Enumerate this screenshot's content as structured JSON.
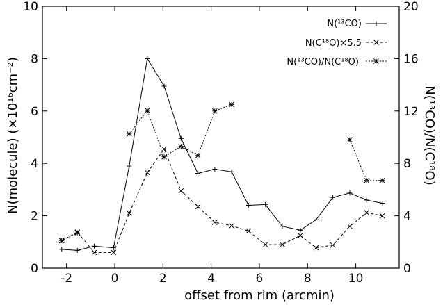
{
  "chart_data": {
    "type": "line",
    "xlabel": "offset from rim (arcmin)",
    "ylabel_left": "N(molecule) (×10¹⁶cm⁻²)",
    "ylabel_right": "N(¹³CO)/N(C¹⁸O)",
    "xlim": [
      -3.0,
      11.8
    ],
    "ylim_left": [
      0,
      10
    ],
    "ylim_right": [
      0,
      20
    ],
    "x_ticks": [
      "-2",
      "0",
      "2",
      "4",
      "6",
      "8",
      "10"
    ],
    "y_ticks_left": [
      "0",
      "2",
      "4",
      "6",
      "8",
      "10"
    ],
    "y_ticks_right": [
      "0",
      "4",
      "8",
      "12",
      "16",
      "20"
    ],
    "grid": false,
    "legend_position": "top-right",
    "series": [
      {
        "name": "N(¹³CO)",
        "axis": "left",
        "style": "solid",
        "marker": "plus",
        "points": [
          [
            -2.2,
            0.72
          ],
          [
            -1.55,
            0.68
          ],
          [
            -0.85,
            0.84
          ],
          [
            -0.05,
            0.78
          ],
          [
            0.6,
            3.9
          ],
          [
            1.35,
            8.0
          ],
          [
            2.05,
            6.95
          ],
          [
            2.75,
            4.95
          ],
          [
            3.45,
            3.62
          ],
          [
            4.15,
            3.78
          ],
          [
            4.85,
            3.68
          ],
          [
            5.55,
            2.4
          ],
          [
            6.25,
            2.43
          ],
          [
            6.95,
            1.6
          ],
          [
            7.7,
            1.45
          ],
          [
            8.35,
            1.85
          ],
          [
            9.05,
            2.7
          ],
          [
            9.75,
            2.87
          ],
          [
            10.45,
            2.6
          ],
          [
            11.1,
            2.48
          ]
        ]
      },
      {
        "name": "N(C¹⁸O)×5.5",
        "axis": "left",
        "style": "dashed",
        "marker": "x",
        "points": [
          [
            -2.2,
            1.05
          ],
          [
            -1.55,
            1.38
          ],
          [
            -0.85,
            0.6
          ],
          [
            -0.05,
            0.6
          ],
          [
            0.6,
            2.1
          ],
          [
            1.35,
            3.65
          ],
          [
            2.05,
            4.55
          ],
          [
            2.75,
            2.95
          ],
          [
            3.45,
            2.35
          ],
          [
            4.15,
            1.75
          ],
          [
            4.85,
            1.62
          ],
          [
            5.55,
            1.42
          ],
          [
            6.25,
            0.9
          ],
          [
            6.95,
            0.9
          ],
          [
            7.7,
            1.25
          ],
          [
            8.35,
            0.78
          ],
          [
            9.05,
            0.88
          ],
          [
            9.75,
            1.6
          ],
          [
            10.45,
            2.12
          ],
          [
            11.1,
            2.0
          ]
        ]
      },
      {
        "name": "N(¹³CO)/N(C¹⁸O)",
        "axis": "right",
        "style": "dotted",
        "marker": "star",
        "segments": [
          [
            [
              -2.2,
              2.1
            ],
            [
              -1.55,
              2.7
            ]
          ],
          [
            [
              0.6,
              10.25
            ],
            [
              1.35,
              12.05
            ],
            [
              2.05,
              8.5
            ],
            [
              2.75,
              9.3
            ],
            [
              3.45,
              8.6
            ],
            [
              4.15,
              12.0
            ],
            [
              4.85,
              12.5
            ]
          ],
          [
            [
              9.75,
              9.8
            ],
            [
              10.45,
              6.7
            ],
            [
              11.1,
              6.7
            ]
          ]
        ]
      }
    ]
  }
}
